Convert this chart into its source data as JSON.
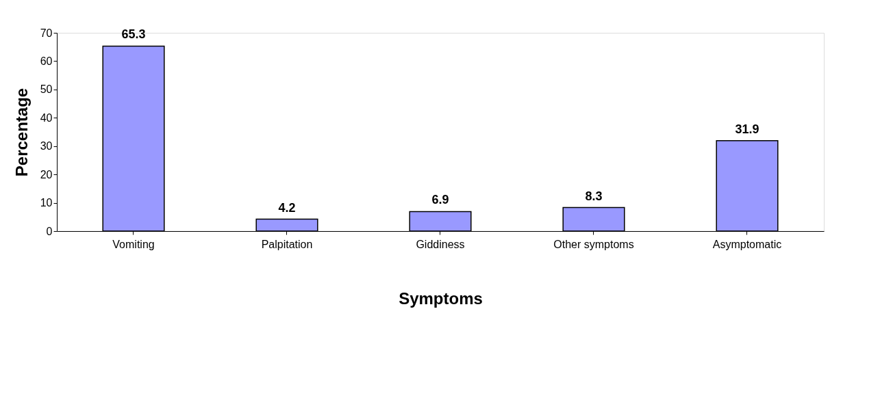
{
  "chart_data": {
    "type": "bar",
    "xlabel": "Symptoms",
    "ylabel": "Percentage",
    "categories": [
      "Vomiting",
      "Palpitation",
      "Giddiness",
      "Other symptoms",
      "Asymptomatic"
    ],
    "values": [
      65.3,
      4.2,
      6.9,
      8.3,
      31.9
    ],
    "color": "#9999ff",
    "ylim": [
      0,
      70
    ],
    "yticks": [
      0,
      10,
      20,
      30,
      40,
      50,
      60,
      70
    ],
    "grid": false,
    "data_labels": true
  }
}
